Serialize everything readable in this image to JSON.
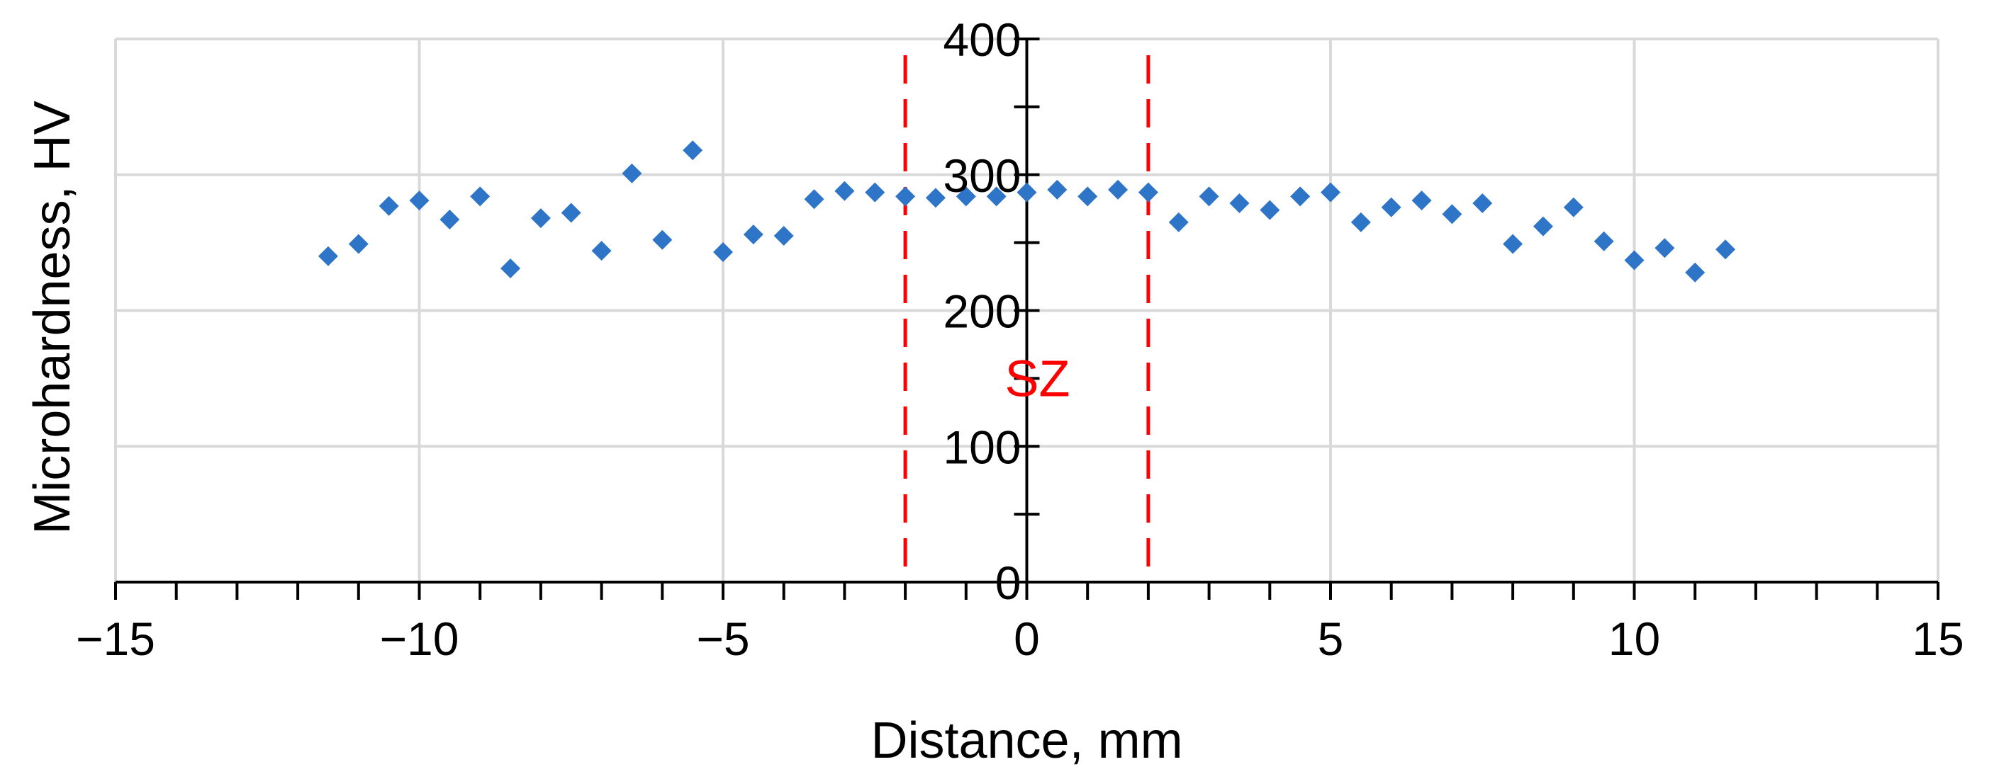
{
  "chart_data": {
    "type": "scatter",
    "title": "",
    "xlabel": "Distance, mm",
    "ylabel": "Microhardness, HV",
    "xlim": [
      -15,
      15
    ],
    "ylim": [
      0,
      400
    ],
    "x_ticks": [
      -15,
      -10,
      -5,
      0,
      5,
      10,
      15
    ],
    "x_tick_labels": [
      "−15",
      "−10",
      "−5",
      "0",
      "5",
      "10",
      "15"
    ],
    "y_ticks": [
      0,
      100,
      200,
      300,
      400
    ],
    "y_tick_labels": [
      "0",
      "100",
      "200",
      "300",
      "400"
    ],
    "grid": true,
    "legend": "none",
    "marker": "diamond",
    "marker_color": "#2e75c8",
    "series": [
      {
        "points": [
          {
            "x": -11.5,
            "y": 240
          },
          {
            "x": -11,
            "y": 249
          },
          {
            "x": -10.5,
            "y": 277
          },
          {
            "x": -10,
            "y": 281
          },
          {
            "x": -9.5,
            "y": 267
          },
          {
            "x": -9,
            "y": 284
          },
          {
            "x": -8.5,
            "y": 231
          },
          {
            "x": -8,
            "y": 268
          },
          {
            "x": -7.5,
            "y": 272
          },
          {
            "x": -7,
            "y": 244
          },
          {
            "x": -6.5,
            "y": 301
          },
          {
            "x": -6,
            "y": 252
          },
          {
            "x": -5.5,
            "y": 318
          },
          {
            "x": -5,
            "y": 243
          },
          {
            "x": -4.5,
            "y": 256
          },
          {
            "x": -4,
            "y": 255
          },
          {
            "x": -3.5,
            "y": 282
          },
          {
            "x": -3,
            "y": 288
          },
          {
            "x": -2.5,
            "y": 287
          },
          {
            "x": -2,
            "y": 284
          },
          {
            "x": -1.5,
            "y": 283
          },
          {
            "x": -1,
            "y": 284
          },
          {
            "x": -0.5,
            "y": 284
          },
          {
            "x": 0,
            "y": 287
          },
          {
            "x": 0.5,
            "y": 289
          },
          {
            "x": 1,
            "y": 284
          },
          {
            "x": 1.5,
            "y": 289
          },
          {
            "x": 2,
            "y": 287
          },
          {
            "x": 2.5,
            "y": 265
          },
          {
            "x": 3,
            "y": 284
          },
          {
            "x": 3.5,
            "y": 279
          },
          {
            "x": 4,
            "y": 274
          },
          {
            "x": 4.5,
            "y": 284
          },
          {
            "x": 5,
            "y": 287
          },
          {
            "x": 5.5,
            "y": 265
          },
          {
            "x": 6,
            "y": 276
          },
          {
            "x": 6.5,
            "y": 281
          },
          {
            "x": 7,
            "y": 271
          },
          {
            "x": 7.5,
            "y": 279
          },
          {
            "x": 8,
            "y": 249
          },
          {
            "x": 8.5,
            "y": 262
          },
          {
            "x": 9,
            "y": 276
          },
          {
            "x": 9.5,
            "y": 251
          },
          {
            "x": 10,
            "y": 237
          },
          {
            "x": 10.5,
            "y": 246
          },
          {
            "x": 11,
            "y": 228
          },
          {
            "x": 11.5,
            "y": 245
          }
        ]
      }
    ],
    "annotations": {
      "zone_lines": {
        "x": [
          -2,
          2
        ],
        "color": "#ff0000",
        "style": "dashed"
      },
      "zone_label": {
        "text": "SZ",
        "color": "#ff0000"
      }
    }
  }
}
